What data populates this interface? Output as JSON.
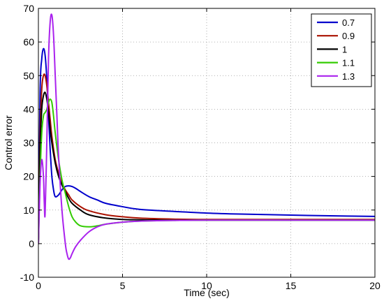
{
  "chart_data": {
    "type": "line",
    "title": "",
    "xlabel": "Time (sec)",
    "ylabel": "Control error",
    "xlim": [
      0,
      20
    ],
    "ylim": [
      -10,
      70
    ],
    "xticks": [
      0,
      5,
      10,
      15,
      20
    ],
    "yticks": [
      -10,
      0,
      10,
      20,
      30,
      40,
      50,
      60,
      70
    ],
    "grid": true,
    "legend_position": "top-right",
    "series": [
      {
        "name": "0.7",
        "color": "#0000cc",
        "x": [
          0,
          0.1,
          0.2,
          0.3,
          0.4,
          0.5,
          0.6,
          0.7,
          0.8,
          0.9,
          1.0,
          1.2,
          1.4,
          1.6,
          1.8,
          2.0,
          2.2,
          2.5,
          3.0,
          3.5,
          4.0,
          5.0,
          6.0,
          8.0,
          10.0,
          12.0,
          15.0,
          17.0,
          20.0
        ],
        "y": [
          0,
          45,
          55,
          58,
          56,
          49,
          38,
          28,
          20,
          16,
          14,
          14.5,
          16,
          17,
          17.2,
          17,
          16.5,
          15.5,
          14,
          13,
          12,
          11,
          10.2,
          9.6,
          9.1,
          8.8,
          8.5,
          8.3,
          8.1
        ]
      },
      {
        "name": "0.9",
        "color": "#aa1100",
        "x": [
          0,
          0.1,
          0.2,
          0.3,
          0.4,
          0.5,
          0.6,
          0.7,
          0.8,
          1.0,
          1.2,
          1.4,
          1.6,
          1.8,
          2.0,
          2.5,
          3.0,
          4.0,
          5.0,
          6.0,
          8.0,
          10.0,
          15.0,
          20.0
        ],
        "y": [
          0,
          32,
          46,
          50,
          50,
          47,
          42,
          37,
          32,
          25,
          21,
          18,
          16,
          14.5,
          13,
          11,
          9.8,
          8.6,
          8,
          7.6,
          7.3,
          7.2,
          7.2,
          7.2
        ]
      },
      {
        "name": "1",
        "color": "#000000",
        "x": [
          0,
          0.1,
          0.2,
          0.3,
          0.4,
          0.5,
          0.6,
          0.7,
          0.8,
          1.0,
          1.2,
          1.4,
          1.6,
          1.8,
          2.0,
          2.5,
          3.0,
          4.0,
          5.0,
          6.0,
          8.0,
          10.0,
          15.0,
          20.0
        ],
        "y": [
          0,
          28,
          40,
          44,
          45,
          43,
          39,
          34,
          30,
          24,
          20,
          17.5,
          15.5,
          13.5,
          12,
          10,
          8.6,
          7.6,
          7.2,
          7.1,
          7.0,
          7.0,
          7.0,
          7.0
        ]
      },
      {
        "name": "1.1",
        "color": "#33cc00",
        "x": [
          0,
          0.1,
          0.2,
          0.3,
          0.4,
          0.5,
          0.6,
          0.7,
          0.8,
          0.9,
          1.0,
          1.2,
          1.4,
          1.6,
          1.8,
          2.0,
          2.2,
          2.5,
          3.0,
          3.5,
          4.0,
          5.0,
          6.0,
          8.0,
          10.0,
          15.0,
          20.0
        ],
        "y": [
          0,
          20,
          33,
          38,
          39,
          40,
          42,
          43,
          42,
          38,
          33,
          25,
          19,
          15,
          11,
          8,
          6.5,
          5.3,
          5,
          5.3,
          5.8,
          6.4,
          6.7,
          6.9,
          7.0,
          7.0,
          7.0
        ]
      },
      {
        "name": "1.3",
        "color": "#aa22ee",
        "x": [
          0,
          0.1,
          0.2,
          0.3,
          0.35,
          0.4,
          0.5,
          0.6,
          0.7,
          0.8,
          0.9,
          1.0,
          1.1,
          1.2,
          1.4,
          1.6,
          1.7,
          1.8,
          1.9,
          2.0,
          2.2,
          2.5,
          3.0,
          3.5,
          4.0,
          5.0,
          6.0,
          8.0,
          10.0,
          15.0,
          20.0
        ],
        "y": [
          0,
          18,
          25,
          20,
          12,
          9,
          30,
          55,
          66,
          68,
          62,
          50,
          38,
          26,
          10,
          0,
          -3,
          -4.6,
          -4.2,
          -3,
          -1,
          1,
          3.5,
          5,
          5.8,
          6.4,
          6.7,
          6.9,
          7.0,
          7.0,
          7.0
        ]
      }
    ]
  }
}
